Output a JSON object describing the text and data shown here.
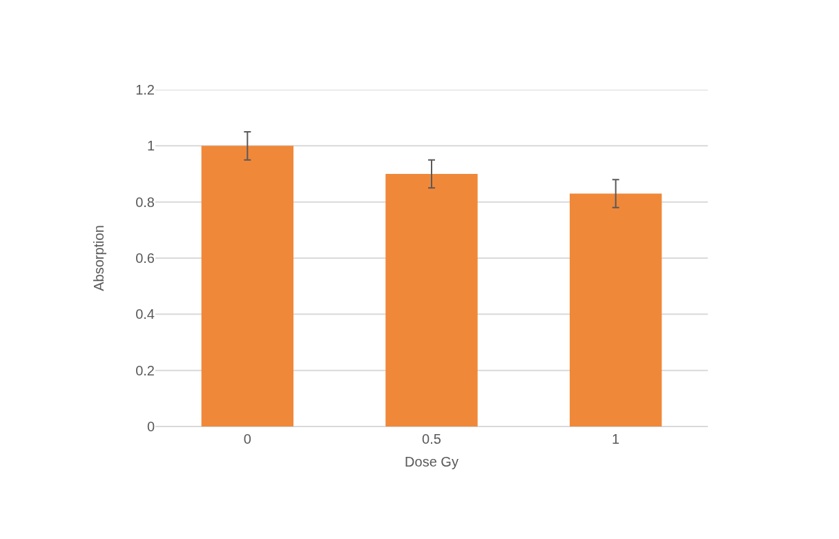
{
  "chart_data": {
    "type": "bar",
    "xlabel": "Dose Gy",
    "ylabel": "Absorption",
    "categories": [
      "0",
      "0.5",
      "1"
    ],
    "values": [
      1.0,
      0.9,
      0.83
    ],
    "errors": [
      0.05,
      0.05,
      0.05
    ],
    "color": "#f0883a",
    "ylim": [
      0,
      1.2
    ],
    "yticks": [
      0,
      0.2,
      0.4,
      0.6,
      0.8,
      1,
      1.2
    ],
    "grid": "y"
  }
}
